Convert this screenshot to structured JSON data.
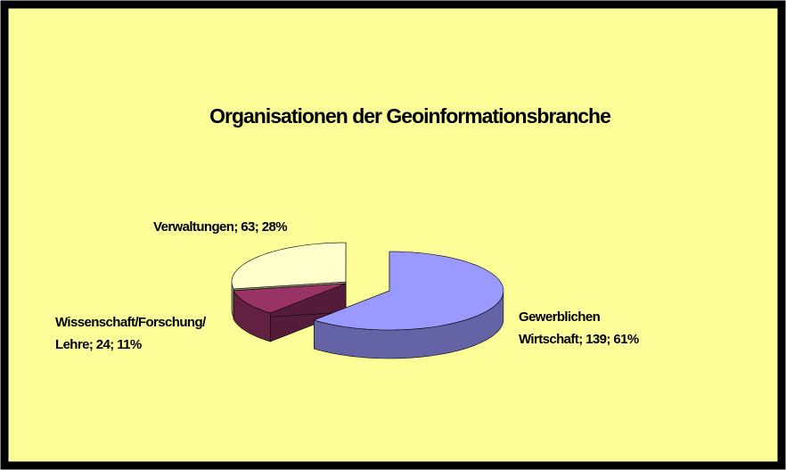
{
  "chart_data": {
    "type": "pie3d",
    "title": "Organisationen der Geoinformationsbranche",
    "categories": [
      "Gewerblichen Wirtschaft",
      "Wissenschaft/Forschung/Lehre",
      "Verwaltungen"
    ],
    "values": [
      139,
      24,
      63
    ],
    "value_labels": [
      [
        "Gewerblichen",
        "Wirtschaft; 139; 61%"
      ],
      [
        "Wissenschaft/Forschung/",
        "Lehre; 24; 11%"
      ],
      [
        "Verwaltungen; 63; 28%"
      ]
    ],
    "colors": [
      "#9999ff",
      "#993366",
      "#ffffcc"
    ]
  }
}
